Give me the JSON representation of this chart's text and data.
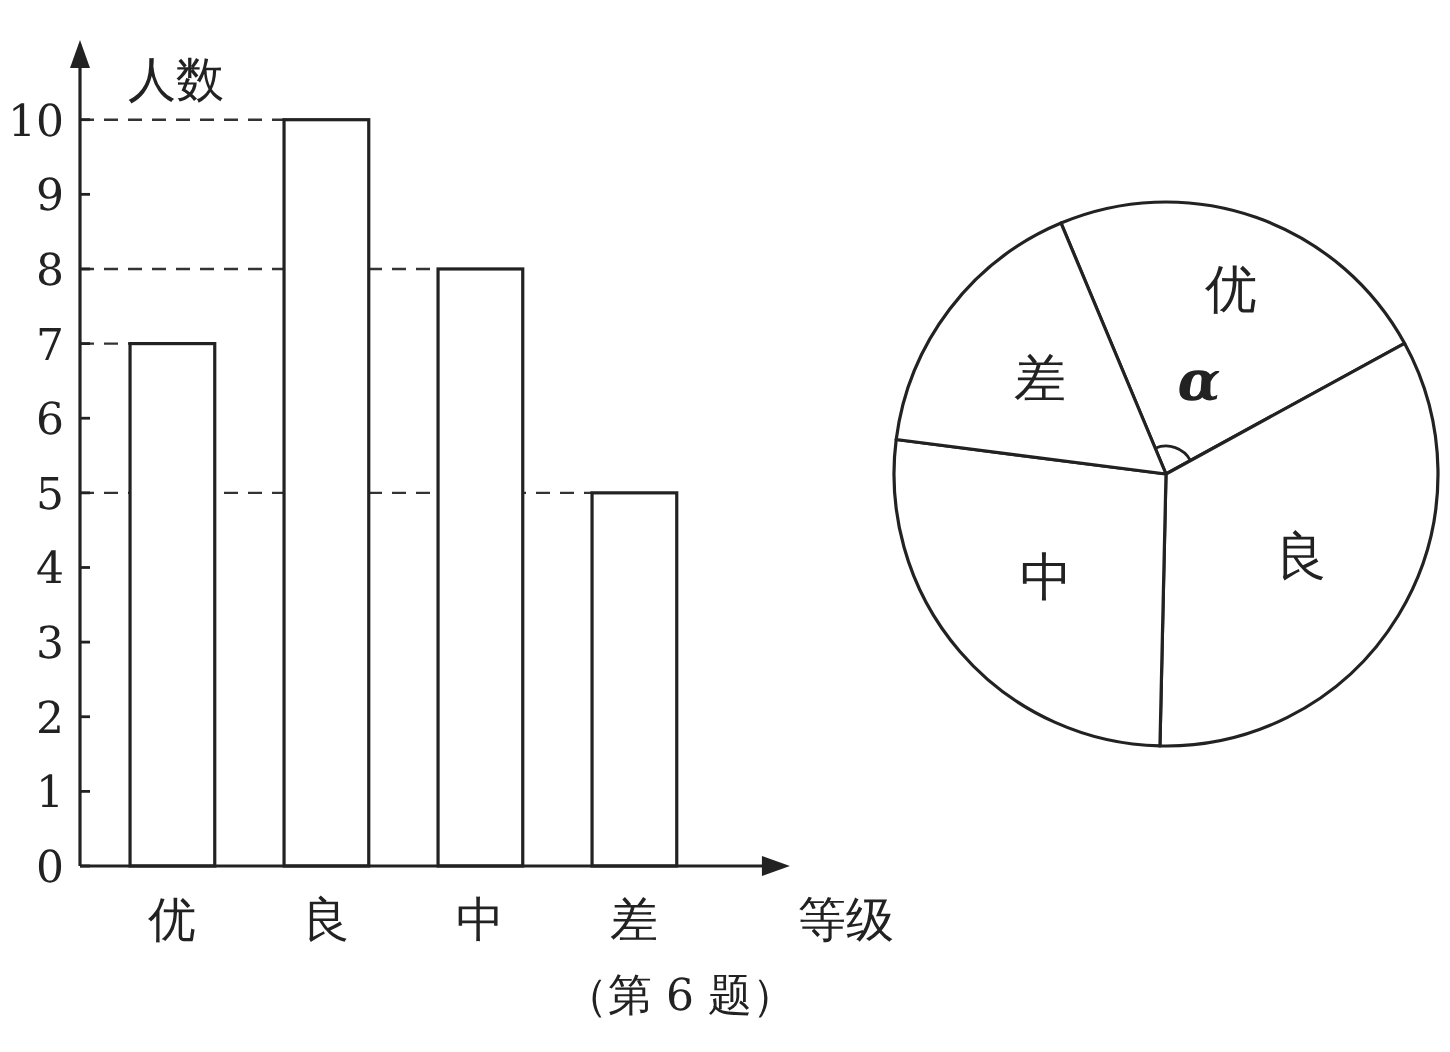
{
  "chart_data": [
    {
      "type": "bar",
      "categories": [
        "优",
        "良",
        "中",
        "差"
      ],
      "values": [
        7,
        10,
        8,
        5
      ],
      "color": "#ffffff",
      "ylabel": "人数",
      "xlabel": "等级",
      "ylim": [
        0,
        10.8
      ],
      "yticks": [
        0,
        1,
        2,
        3,
        4,
        5,
        6,
        7,
        8,
        9,
        10
      ],
      "grid": false,
      "ref_lines": [
        {
          "axis": "y",
          "value": 10,
          "line_style": "dashed"
        },
        {
          "axis": "y",
          "value": 8,
          "line_style": "dashed"
        },
        {
          "axis": "y",
          "value": 7,
          "line_style": "dashed"
        },
        {
          "axis": "y",
          "value": 5,
          "line_style": "dashed"
        }
      ],
      "annotations": [
        "（第 6 题）"
      ]
    },
    {
      "type": "pie",
      "categories": [
        "优",
        "良",
        "中",
        "差"
      ],
      "values": [
        23.33,
        33.33,
        26.67,
        16.67
      ],
      "colors": [
        "#ffffff",
        "#ffffff",
        "#ffffff",
        "#ffffff"
      ],
      "annotations": [
        "α"
      ]
    }
  ]
}
